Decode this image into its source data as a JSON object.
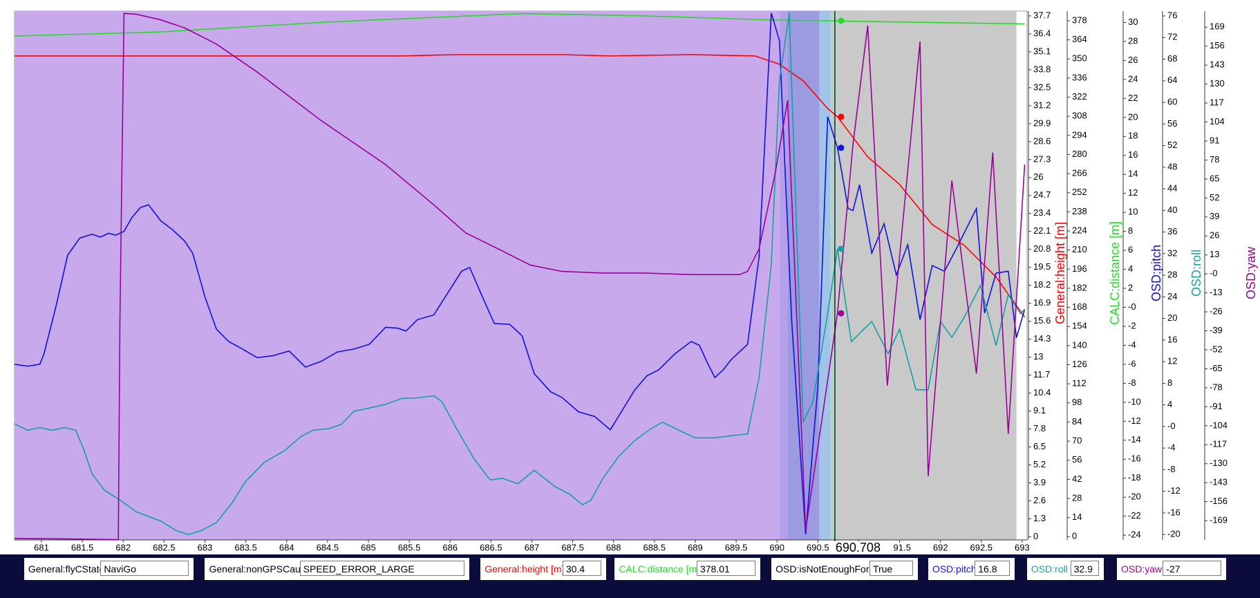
{
  "chart_data": {
    "type": "line",
    "xlim": [
      680.67,
      693.06
    ],
    "xticks": [
      681,
      681.5,
      682,
      682.5,
      683,
      683.5,
      684,
      684.5,
      685,
      685.5,
      686,
      686.5,
      687,
      687.5,
      688,
      688.5,
      689,
      689.5,
      690,
      690.5,
      691,
      691.5,
      692,
      692.5,
      693
    ],
    "cursor": 690.708,
    "regions": [
      {
        "x0": 680.67,
        "x1": 690.03,
        "color": "#c8aaec"
      },
      {
        "x0": 690.03,
        "x1": 690.13,
        "color": "#b4a0e8"
      },
      {
        "x0": 690.13,
        "x1": 690.52,
        "color": "#9c9ae0"
      },
      {
        "x0": 690.52,
        "x1": 690.65,
        "color": "#a2c4e6"
      },
      {
        "x0": 690.65,
        "x1": 690.74,
        "color": "#b8d0cc"
      },
      {
        "x0": 690.74,
        "x1": 692.93,
        "color": "#c9c9c9"
      }
    ],
    "series": [
      {
        "name": "General:height [m]",
        "color": "#ff0000",
        "readout": 30.4,
        "ylim": [
          -0.23,
          38.05
        ],
        "yticks": [
          0,
          1.3,
          2.6,
          3.9,
          5.2,
          6.5,
          7.8,
          9.1,
          10.4,
          11.7,
          13,
          14.3,
          15.6,
          16.9,
          18.2,
          19.5,
          20.8,
          22.1,
          23.4,
          24.7,
          26,
          27.3,
          28.6,
          29.9,
          31.2,
          32.5,
          33.8,
          35.1,
          36.4,
          37.7
        ],
        "x": [
          680.67,
          681.96,
          683.44,
          685.41,
          686.09,
          687.37,
          687.96,
          688.95,
          689.73,
          690.03,
          690.32,
          690.62,
          690.74,
          691.11,
          691.5,
          691.9,
          692.29,
          692.68,
          693.03
        ],
        "values": [
          34.8,
          34.8,
          34.8,
          34.8,
          34.9,
          34.9,
          34.8,
          34.9,
          34.8,
          34.2,
          33.0,
          31.0,
          30.4,
          27.5,
          25.5,
          22.6,
          21.1,
          18.8,
          15.9
        ]
      },
      {
        "name": "CALC:distance [m]",
        "color": "#22dd22",
        "readout": 378.01,
        "ylim": [
          -2.4,
          385.1
        ],
        "yticks": [
          0,
          14,
          28,
          42,
          56,
          70,
          84,
          98,
          112,
          126,
          140,
          154,
          168,
          182,
          196,
          210,
          224,
          238,
          252,
          266,
          280,
          294,
          308,
          322,
          336,
          350,
          364,
          378
        ],
        "x": [
          680.67,
          682.46,
          684.42,
          686.88,
          688.36,
          689.93,
          690.74,
          693.03
        ],
        "values": [
          366.8,
          369.8,
          376.8,
          383.3,
          381.6,
          378.6,
          377.8,
          375.7
        ]
      },
      {
        "name": "OSD:pitch",
        "color": "#1010e0",
        "readout": 16.8,
        "ylim": [
          -24.5,
          31.2
        ],
        "yticks": [
          -24,
          -22,
          -20,
          -18,
          -16,
          -14,
          -12,
          -10,
          -8,
          -6,
          -4,
          -2,
          {
            "value": 0,
            "label": "-0"
          },
          2,
          4,
          6,
          8,
          10,
          12,
          14,
          16,
          18,
          20,
          22,
          24,
          26,
          28,
          30
        ],
        "x": [
          680.67,
          680.83,
          680.98,
          681.03,
          681.18,
          681.32,
          681.47,
          681.62,
          681.72,
          681.82,
          681.91,
          682.01,
          682.11,
          682.21,
          682.31,
          682.46,
          682.6,
          682.75,
          682.85,
          683.0,
          683.14,
          683.29,
          683.44,
          683.64,
          683.83,
          684.03,
          684.23,
          684.42,
          684.62,
          684.82,
          685.01,
          685.21,
          685.36,
          685.46,
          685.6,
          685.8,
          686.0,
          686.14,
          686.24,
          686.39,
          686.54,
          686.73,
          686.88,
          687.03,
          687.23,
          687.37,
          687.57,
          687.77,
          687.96,
          688.06,
          688.26,
          688.41,
          688.55,
          688.75,
          688.95,
          689.05,
          689.14,
          689.24,
          689.34,
          689.44,
          689.64,
          689.78,
          689.93,
          690.03,
          690.18,
          690.35,
          690.5,
          690.62,
          690.74,
          690.87,
          690.93,
          691.01,
          691.16,
          691.31,
          691.46,
          691.6,
          691.75,
          691.9,
          692.05,
          692.19,
          692.44,
          692.54,
          692.68,
          692.83,
          692.93,
          693.03
        ],
        "values": [
          -6.0,
          -6.2,
          -6.0,
          -4.9,
          0.2,
          5.5,
          7.3,
          7.7,
          7.4,
          7.8,
          7.6,
          8.0,
          9.5,
          10.5,
          10.8,
          9.1,
          8.2,
          7.0,
          5.7,
          1.1,
          -2.3,
          -3.6,
          -4.3,
          -5.3,
          -5.1,
          -4.6,
          -6.3,
          -5.7,
          -4.7,
          -4.4,
          -3.9,
          -2.1,
          -2.2,
          -2.5,
          -1.3,
          -0.8,
          1.9,
          3.8,
          4.2,
          1.2,
          -1.7,
          -1.8,
          -3.0,
          -7.0,
          -8.9,
          -9.5,
          -11.0,
          -11.5,
          -12.9,
          -11.5,
          -8.7,
          -7.2,
          -6.6,
          -4.9,
          -3.6,
          -4.0,
          -5.7,
          -7.4,
          -6.6,
          -5.5,
          -3.9,
          5.3,
          31.0,
          28.1,
          -1.5,
          -23.9,
          -8.3,
          20.1,
          16.8,
          10.4,
          10.2,
          12.9,
          5.7,
          8.8,
          3.4,
          6.6,
          -1.3,
          4.4,
          3.8,
          6.1,
          10.4,
          -0.6,
          3.6,
          3.8,
          -3.2,
          -0.2
        ]
      },
      {
        "name": "OSD:roll",
        "color": "#14a0a0",
        "readout": 32.9,
        "ylim": [
          -21.0,
          76.9
        ],
        "yticks": [
          -20,
          -16,
          -12,
          -8,
          -4,
          {
            "value": 0,
            "label": "-0"
          },
          4,
          8,
          12,
          16,
          20,
          24,
          28,
          32,
          36,
          40,
          44,
          48,
          52,
          56,
          60,
          64,
          68,
          72,
          76
        ],
        "x": [
          680.67,
          680.83,
          680.98,
          681.13,
          681.28,
          681.42,
          681.52,
          681.62,
          681.77,
          681.96,
          682.16,
          682.46,
          682.65,
          682.8,
          682.95,
          683.14,
          683.34,
          683.49,
          683.73,
          683.98,
          684.18,
          684.32,
          684.52,
          684.67,
          684.82,
          685.01,
          685.21,
          685.41,
          685.6,
          685.8,
          685.9,
          686.09,
          686.29,
          686.49,
          686.64,
          686.83,
          687.03,
          687.28,
          687.47,
          687.62,
          687.72,
          687.87,
          688.06,
          688.26,
          688.46,
          688.6,
          688.8,
          689.0,
          689.24,
          689.44,
          689.64,
          689.78,
          689.93,
          690.03,
          690.15,
          690.32,
          690.44,
          690.62,
          690.74,
          690.91,
          691.06,
          691.16,
          691.36,
          691.5,
          691.7,
          691.85,
          692.0,
          692.14,
          692.29,
          692.49,
          692.68,
          692.83,
          692.98,
          693.03
        ],
        "values": [
          0.5,
          -0.7,
          -0.2,
          -0.7,
          -0.2,
          -0.7,
          -4.4,
          -8.8,
          -11.8,
          -13.6,
          -15.8,
          -17.5,
          -19.3,
          -20.0,
          -19.3,
          -17.8,
          -14.0,
          -10.3,
          -6.6,
          -4.4,
          -1.8,
          -0.7,
          -0.4,
          0.4,
          2.8,
          3.4,
          4.1,
          5.2,
          5.3,
          5.7,
          4.6,
          -0.7,
          -5.9,
          -9.9,
          -9.6,
          -10.6,
          -8.1,
          -11.1,
          -12.6,
          -14.5,
          -13.7,
          -9.6,
          -5.6,
          -2.6,
          -0.4,
          0.8,
          -0.7,
          -2.1,
          -2.1,
          -1.7,
          -1.4,
          9.0,
          29.9,
          64.1,
          76.5,
          0.8,
          4.6,
          20.9,
          32.9,
          15.7,
          18.0,
          19.4,
          13.5,
          18.0,
          6.8,
          6.8,
          19.4,
          16.5,
          20.2,
          26.1,
          15.0,
          24.4,
          20.9,
          21.7
        ]
      },
      {
        "name": "OSD:yaw",
        "color": "#990099",
        "readout": -27,
        "ylim": [
          -182.2,
          180.0
        ],
        "yticks": [
          -169,
          -156,
          -143,
          -130,
          -117,
          -104,
          -91,
          -78,
          -65,
          -52,
          -39,
          -26,
          -13,
          {
            "value": 0,
            "label": "-0"
          },
          13,
          26,
          39,
          52,
          65,
          78,
          91,
          104,
          117,
          130,
          143,
          156,
          169
        ],
        "x": [
          680.67,
          681.57,
          681.94,
          681.96,
          682.01,
          682.16,
          682.46,
          682.75,
          683.14,
          683.64,
          684.42,
          685.21,
          685.8,
          686.19,
          686.59,
          686.98,
          687.37,
          687.87,
          688.36,
          688.95,
          689.54,
          689.64,
          689.78,
          689.98,
          690.13,
          690.35,
          690.74,
          690.93,
          691.11,
          691.35,
          691.75,
          691.85,
          692.14,
          692.44,
          692.64,
          692.83,
          693.03
        ],
        "values": [
          -181.1,
          -181.7,
          -182.0,
          -32.5,
          178.4,
          177.8,
          174.0,
          168.5,
          157.4,
          138.2,
          105.1,
          74.9,
          47.3,
          28.1,
          17.1,
          6.1,
          1.7,
          0.6,
          0.6,
          -0.5,
          -0.5,
          1.7,
          17.1,
          69.4,
          118.9,
          -175.6,
          -27,
          88.6,
          170.1,
          -76.5,
          159.1,
          -138.7,
          63.9,
          -68.3,
          83.1,
          -109.5,
          74.9
        ]
      }
    ],
    "fields": [
      {
        "label": "General:flyCState",
        "value": "NaviGo",
        "color": "#000000"
      },
      {
        "label": "General:nonGPSCause",
        "value": "SPEED_ERROR_LARGE",
        "color": "#000000"
      },
      {
        "label": "OSD:isNotEnoughForce",
        "value": "True",
        "color": "#000000"
      }
    ]
  }
}
